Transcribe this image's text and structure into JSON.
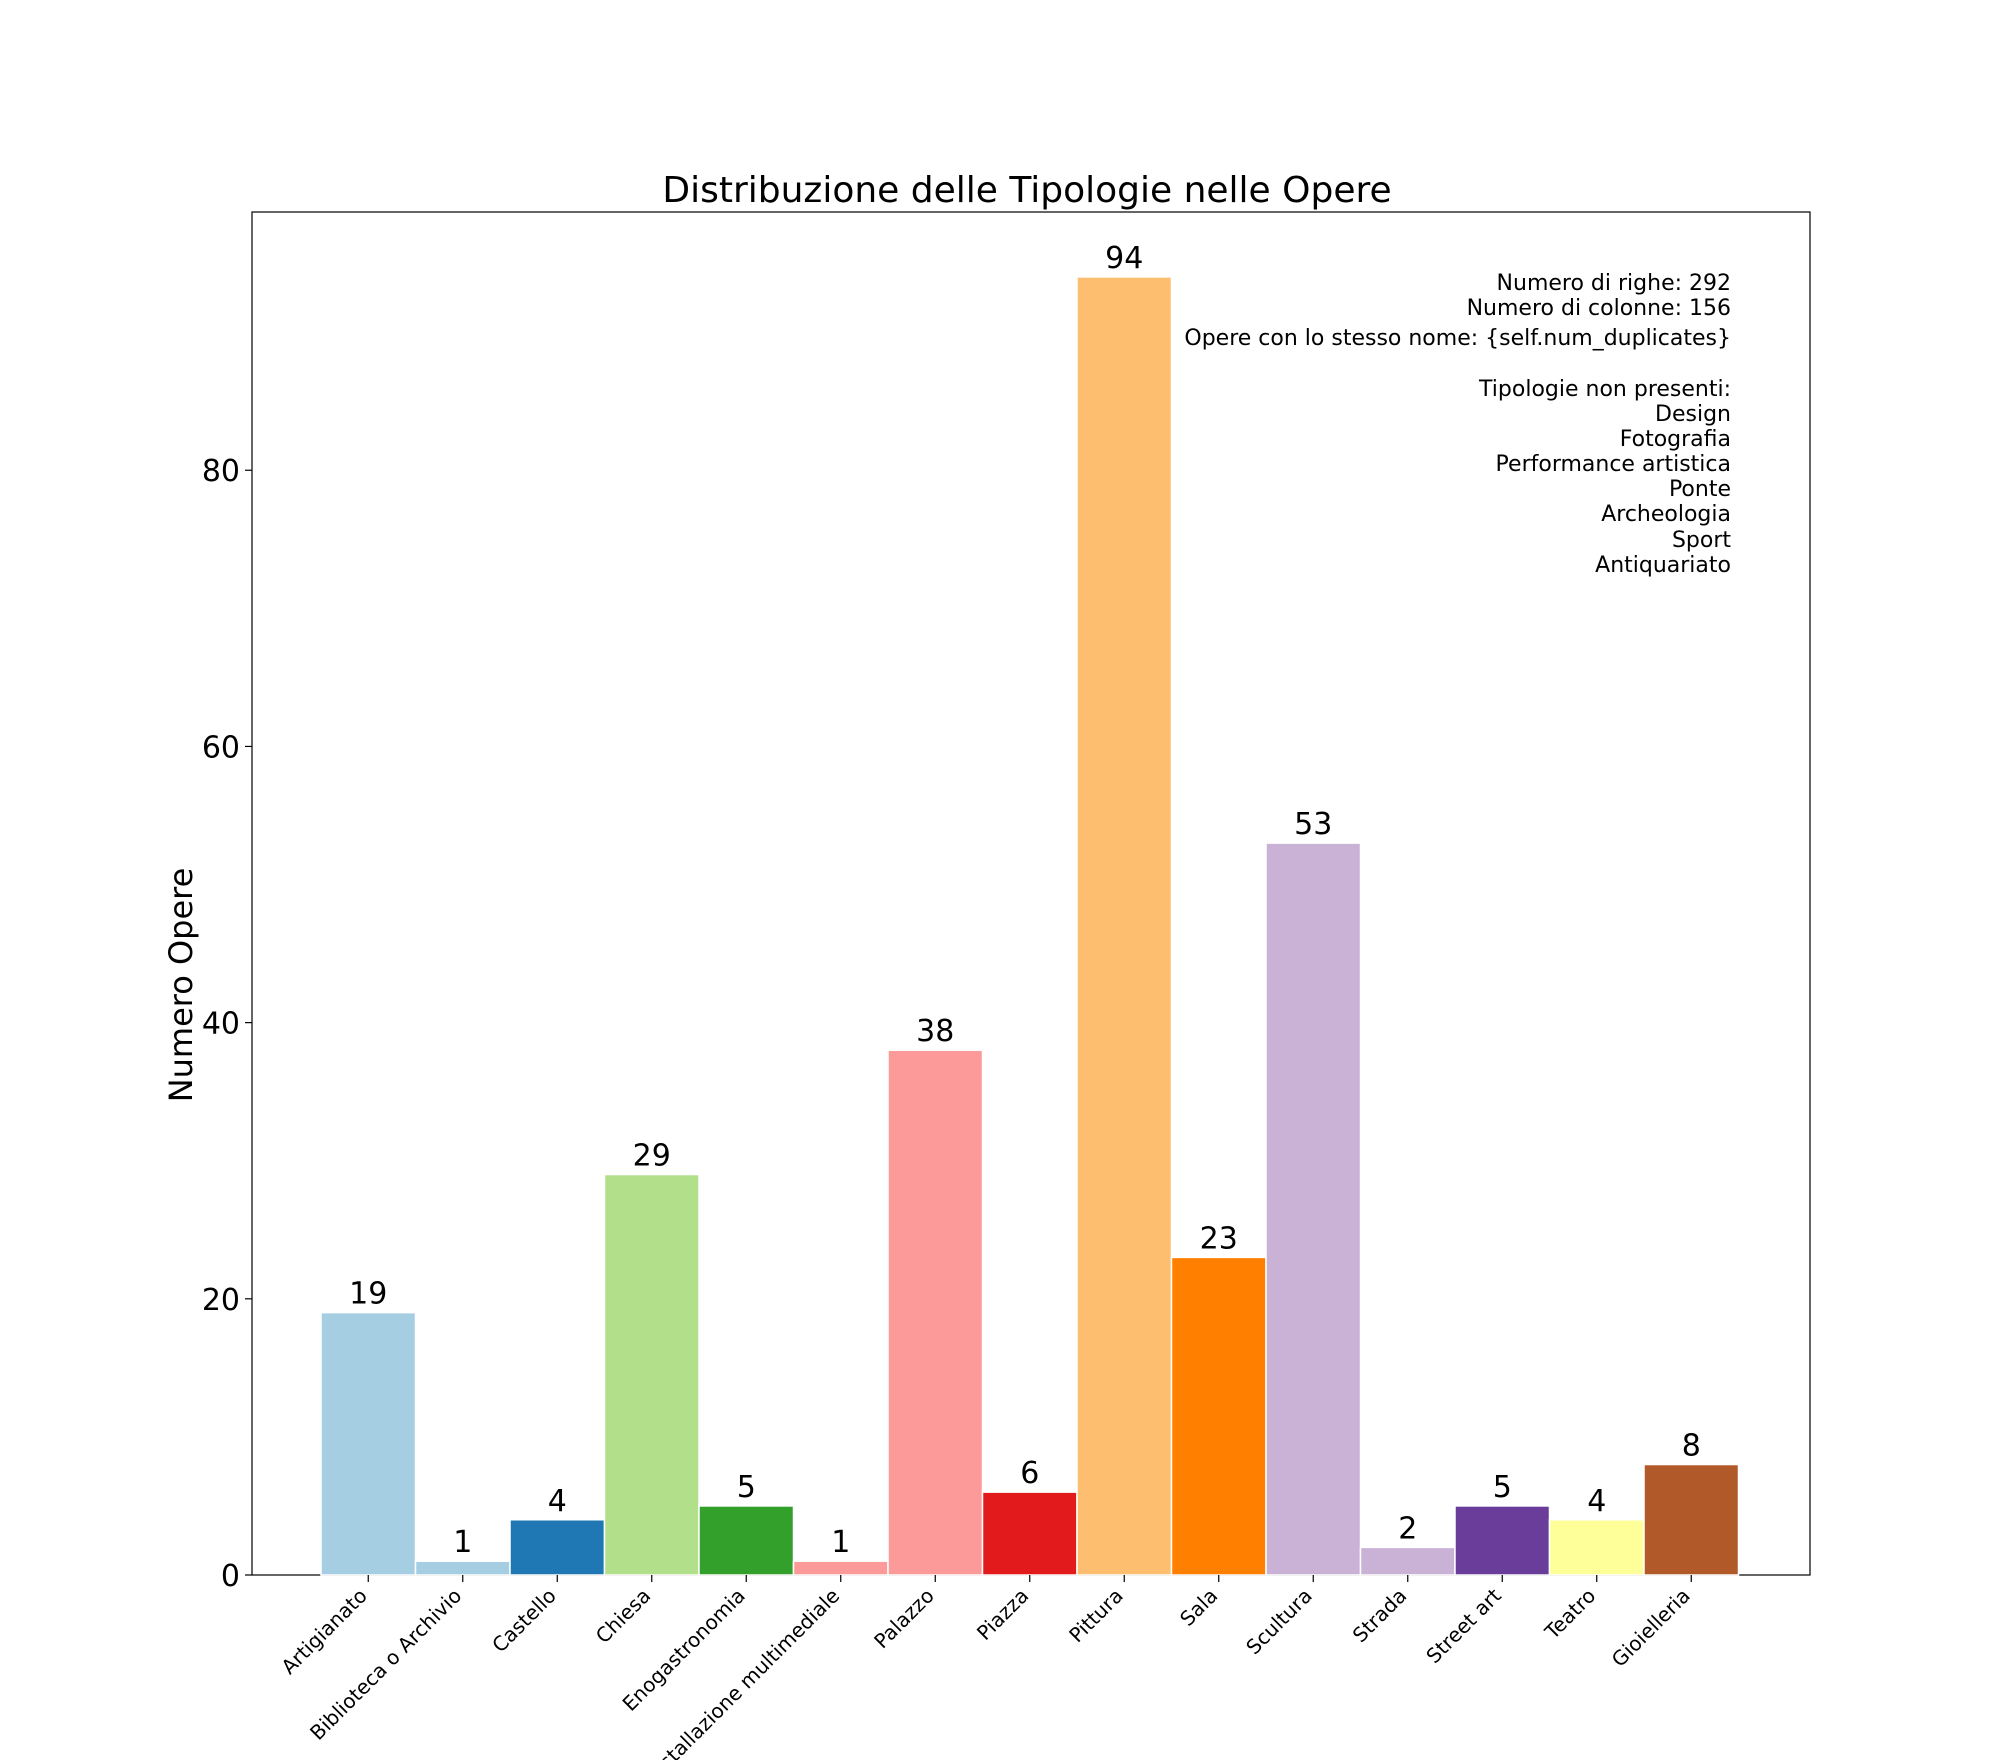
{
  "chart_data": {
    "type": "bar",
    "title": "Distribuzione delle Tipologie nelle Opere",
    "xlabel": "",
    "ylabel": "Numero Opere",
    "ylim": [
      0,
      98.7
    ],
    "yticks": [
      0,
      20,
      40,
      60,
      80
    ],
    "grid": false,
    "categories": [
      "Artigianato",
      "Biblioteca o Archivio",
      "Castello",
      "Chiesa",
      "Enogastronomia",
      "Installazione multimediale",
      "Palazzo",
      "Piazza",
      "Pittura",
      "Sala",
      "Scultura",
      "Strada",
      "Street art",
      "Teatro",
      "Gioielleria"
    ],
    "values": [
      19,
      1,
      4,
      29,
      5,
      1,
      38,
      6,
      94,
      23,
      53,
      2,
      5,
      4,
      8
    ],
    "colors": [
      "#a6cee3",
      "#a6cee3",
      "#1f78b4",
      "#b2df8a",
      "#33a02c",
      "#fb9a99",
      "#fb9a99",
      "#e31a1c",
      "#fdbf6f",
      "#ff7f00",
      "#cab2d6",
      "#cab2d6",
      "#6a3d9a",
      "#ffff99",
      "#b15928"
    ],
    "annotation_lines": [
      "Numero di righe: 292",
      "Numero di colonne: 156",
      "Opere con lo stesso nome: {self.num_duplicates}",
      "",
      "Tipologie non presenti:",
      "Design",
      "Fotografia",
      "Performance artistica",
      "Ponte",
      "Archeologia",
      "Sport",
      "Antiquariato"
    ]
  }
}
